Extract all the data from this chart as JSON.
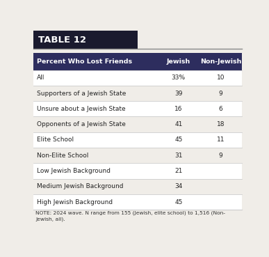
{
  "title": "TABLE 12",
  "title_bg_color": "#1a1a2e",
  "title_text_color": "#ffffff",
  "header_bg_color": "#2d2d5e",
  "header_text_color": "#ffffff",
  "header_cols": [
    "Percent Who Lost Friends",
    "Jewish",
    "Non-Jewish"
  ],
  "rows": [
    {
      "label": "All",
      "jewish": "33%",
      "non_jewish": "10"
    },
    {
      "label": "Supporters of a Jewish State",
      "jewish": "39",
      "non_jewish": "9"
    },
    {
      "label": "Unsure about a Jewish State",
      "jewish": "16",
      "non_jewish": "6"
    },
    {
      "label": "Opponents of a Jewish State",
      "jewish": "41",
      "non_jewish": "18"
    },
    {
      "label": "Elite School",
      "jewish": "45",
      "non_jewish": "11"
    },
    {
      "label": "Non-Elite School",
      "jewish": "31",
      "non_jewish": "9"
    },
    {
      "label": "Low Jewish Background",
      "jewish": "21",
      "non_jewish": ""
    },
    {
      "label": "Medium Jewish Background",
      "jewish": "34",
      "non_jewish": ""
    },
    {
      "label": "High Jewish Background",
      "jewish": "45",
      "non_jewish": ""
    }
  ],
  "note": "NOTE: 2024 wave. N range from 155 (Jewish, elite school) to 1,516 (Non-\nJewish, all).",
  "bg_color": "#f0ede8",
  "row_bg_even": "#ffffff",
  "row_bg_odd": "#f0ede8",
  "row_divider_color": "#cccccc",
  "body_text_color": "#222222",
  "note_text_color": "#333333",
  "title_line_color": "#888888"
}
